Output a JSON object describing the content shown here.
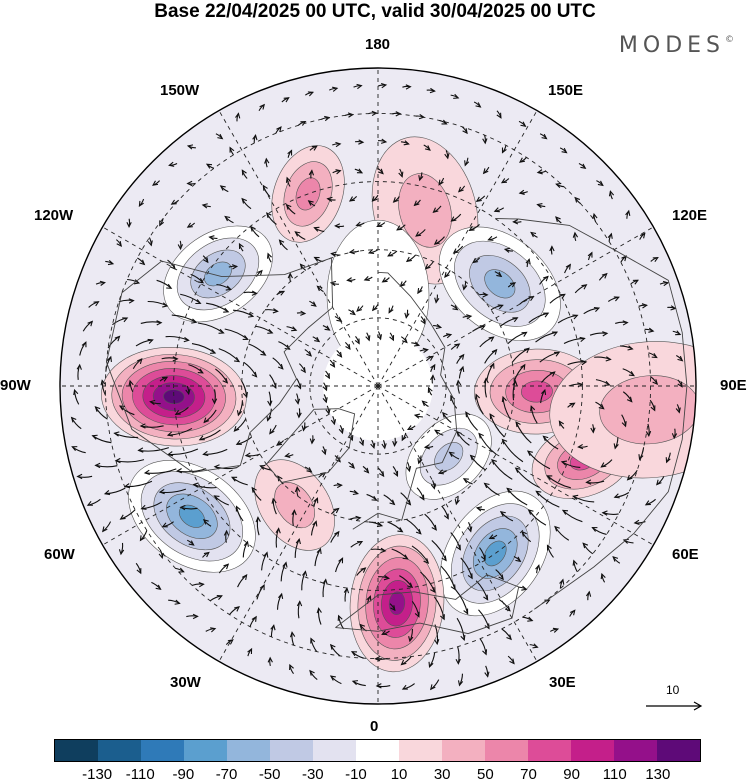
{
  "title": "Base 22/04/2025 00 UTC, valid 30/04/2025 00 UTC",
  "brand": "MODES",
  "brand_mark": "©",
  "longitudes": {
    "top": "180",
    "bottom": "0",
    "left": "90W",
    "right": "90E",
    "upper_left_1": "150W",
    "upper_left_2": "120W",
    "upper_right_1": "150E",
    "upper_right_2": "120E",
    "lower_left_1": "60W",
    "lower_left_2": "30W",
    "lower_right_1": "60E",
    "lower_right_2": "30E"
  },
  "reference_vector": "10",
  "colorbar": {
    "colors": [
      "#0f3e5e",
      "#1b5e8e",
      "#2f7ab8",
      "#5b9fcf",
      "#93b6dc",
      "#c0c9e4",
      "#e3e2f0",
      "#ffffff",
      "#f9d7dc",
      "#f3b0c0",
      "#ec86aa",
      "#dd4c98",
      "#c41f8a",
      "#94108a",
      "#5e0a78"
    ],
    "ticks": [
      "-130",
      "-110",
      "-90",
      "-70",
      "-50",
      "-30",
      "-10",
      "10",
      "30",
      "50",
      "70",
      "90",
      "110",
      "130"
    ]
  },
  "anomaly_centers": [
    {
      "lon": -87,
      "lat": 45,
      "value": 125,
      "r": 58
    },
    {
      "lon": -55,
      "lat": 40,
      "value": -95,
      "r": 56
    },
    {
      "lon": -125,
      "lat": 47,
      "value": -65,
      "r": 48
    },
    {
      "lon": -160,
      "lat": 45,
      "value": 40,
      "r": 40
    },
    {
      "lon": 165,
      "lat": 50,
      "value": 35,
      "r": 60
    },
    {
      "lon": 130,
      "lat": 55,
      "value": -65,
      "r": 55
    },
    {
      "lon": 88,
      "lat": 55,
      "value": 75,
      "r": 50
    },
    {
      "lon": 70,
      "lat": 42,
      "value": 60,
      "r": 42
    },
    {
      "lon": 85,
      "lat": 30,
      "value": 28,
      "r": 80
    },
    {
      "lon": 35,
      "lat": 45,
      "value": -85,
      "r": 55
    },
    {
      "lon": 5,
      "lat": 42,
      "value": 105,
      "r": 55
    },
    {
      "lon": 45,
      "lat": 68,
      "value": -40,
      "r": 40
    },
    {
      "lon": -35,
      "lat": 58,
      "value": 22,
      "r": 40
    },
    {
      "lon": 180,
      "lat": 70,
      "value": -15,
      "r": 60
    }
  ]
}
